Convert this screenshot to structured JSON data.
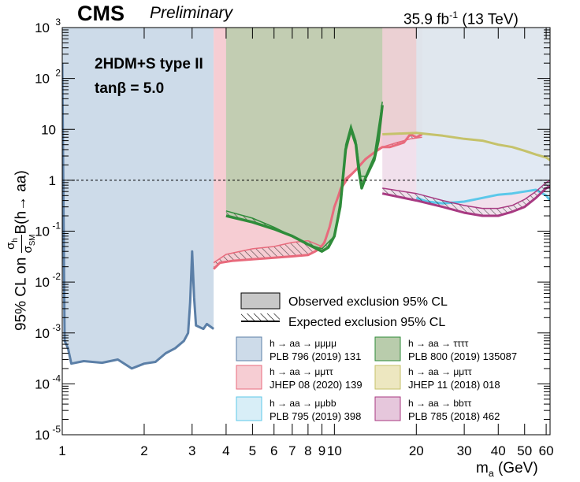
{
  "header": {
    "experiment": "CMS",
    "status": "Preliminary",
    "lumi_value": "35.9 fb",
    "lumi_exp": "-1",
    "energy": "(13 TeV)"
  },
  "annotation": {
    "model": "2HDM+S type II",
    "tanbeta": "tanβ = 5.0"
  },
  "axes": {
    "ylabel_prefix": "95% CL on ",
    "ylabel_ratio_num": "σ",
    "ylabel_ratio_num_sub": "h",
    "ylabel_ratio_den": "σ",
    "ylabel_ratio_den_sub": "SM",
    "ylabel_suffix": "B(h→ aa)",
    "xlabel_main": "m",
    "xlabel_sub": "a",
    "xlabel_unit": " (GeV)"
  },
  "chart_data": {
    "type": "area",
    "x_scale": "log",
    "y_scale": "log",
    "xlim": [
      1,
      62
    ],
    "ylim": [
      1e-05,
      1000
    ],
    "x_ticks": [
      {
        "v": 1,
        "label": "1"
      },
      {
        "v": 2,
        "label": "2"
      },
      {
        "v": 3,
        "label": "3"
      },
      {
        "v": 4,
        "label": "4"
      },
      {
        "v": 5,
        "label": "5"
      },
      {
        "v": 6,
        "label": "6"
      },
      {
        "v": 7,
        "label": "7"
      },
      {
        "v": 8,
        "label": "8"
      },
      {
        "v": 9,
        "label": "9"
      },
      {
        "v": 10,
        "label": "10"
      },
      {
        "v": 20,
        "label": "20"
      },
      {
        "v": 30,
        "label": "30"
      },
      {
        "v": 40,
        "label": "40"
      },
      {
        "v": 50,
        "label": "50"
      },
      {
        "v": 60,
        "label": "60"
      }
    ],
    "y_ticks": [
      {
        "v": 1e-05,
        "base": "10",
        "exp": "-5"
      },
      {
        "v": 0.0001,
        "base": "10",
        "exp": "-4"
      },
      {
        "v": 0.001,
        "base": "10",
        "exp": "-3"
      },
      {
        "v": 0.01,
        "base": "10",
        "exp": "-2"
      },
      {
        "v": 0.1,
        "base": "10",
        "exp": "-1"
      },
      {
        "v": 1,
        "base": "1",
        "exp": ""
      },
      {
        "v": 10,
        "base": "10",
        "exp": ""
      },
      {
        "v": 100,
        "base": "10",
        "exp": "2"
      },
      {
        "v": 1000,
        "base": "10",
        "exp": "3"
      }
    ],
    "reference_line": {
      "y": 1,
      "style": "dashed"
    },
    "series": [
      {
        "name": "h → aa → μμμμ",
        "ref": "PLB 796 (2019) 131",
        "fill": "#cddbe9",
        "line": "#5b7fa7",
        "observed": [
          [
            1.0,
            200
          ],
          [
            1.02,
            0.0007
          ],
          [
            1.05,
            0.0005
          ],
          [
            1.08,
            0.00025
          ],
          [
            1.2,
            0.00028
          ],
          [
            1.4,
            0.00026
          ],
          [
            1.6,
            0.0003
          ],
          [
            1.8,
            0.0002
          ],
          [
            2.0,
            0.00025
          ],
          [
            2.2,
            0.00027
          ],
          [
            2.4,
            0.0004
          ],
          [
            2.6,
            0.0005
          ],
          [
            2.8,
            0.0007
          ],
          [
            2.9,
            0.001
          ],
          [
            2.95,
            0.004
          ],
          [
            3.0,
            0.04
          ],
          [
            3.05,
            0.005
          ],
          [
            3.1,
            0.0014
          ],
          [
            3.3,
            0.0012
          ],
          [
            3.4,
            0.0015
          ],
          [
            3.6,
            0.0012
          ]
        ]
      },
      {
        "name": "h → aa → μμττ",
        "ref": "JHEP 08 (2020) 139",
        "fill": "#f6cdd3",
        "line": "#e86a7c",
        "observed": [
          [
            3.6,
            0.018
          ],
          [
            3.8,
            0.024
          ],
          [
            4.2,
            0.026
          ],
          [
            5,
            0.028
          ],
          [
            6,
            0.03
          ],
          [
            7,
            0.032
          ],
          [
            8,
            0.034
          ],
          [
            8.5,
            0.04
          ],
          [
            8.8,
            0.045
          ],
          [
            9.2,
            0.06
          ],
          [
            9.6,
            0.12
          ],
          [
            10,
            0.3
          ],
          [
            10.6,
            0.7
          ],
          [
            11.2,
            1.1
          ],
          [
            12,
            1.6
          ],
          [
            13,
            2.6
          ],
          [
            14,
            3.5
          ],
          [
            15,
            4.5
          ],
          [
            16,
            4.5
          ],
          [
            18,
            5.5
          ],
          [
            19,
            8
          ],
          [
            20,
            7
          ],
          [
            21,
            8
          ]
        ],
        "expected": [
          [
            3.6,
            0.024
          ],
          [
            4,
            0.035
          ],
          [
            5,
            0.045
          ],
          [
            6,
            0.05
          ],
          [
            7,
            0.06
          ],
          [
            8,
            0.065
          ],
          [
            9,
            0.05
          ],
          [
            9.5,
            0.1
          ],
          [
            10,
            0.3
          ],
          [
            10.5,
            0.7
          ],
          [
            11,
            1.1
          ],
          [
            12,
            1.6
          ],
          [
            13,
            2.5
          ],
          [
            14,
            3.5
          ],
          [
            15,
            4.5
          ],
          [
            17,
            5.5
          ],
          [
            19,
            6.5
          ],
          [
            21,
            7
          ]
        ]
      },
      {
        "name": "h → aa → μμbb",
        "ref": "PLB 795 (2019) 398",
        "fill": "#d8eef7",
        "line": "#5bc8ea",
        "observed": [
          [
            20,
            0.45
          ],
          [
            22,
            0.38
          ],
          [
            25,
            0.35
          ],
          [
            30,
            0.38
          ],
          [
            35,
            0.45
          ],
          [
            40,
            0.52
          ],
          [
            45,
            0.55
          ],
          [
            50,
            0.6
          ],
          [
            55,
            0.65
          ],
          [
            60,
            0.5
          ],
          [
            62,
            0.4
          ]
        ]
      },
      {
        "name": "h → aa → ττττ",
        "ref": "PLB 800 (2019) 135087",
        "fill": "#b9ccac",
        "line": "#2f8c3a",
        "observed": [
          [
            4,
            0.2
          ],
          [
            5,
            0.15
          ],
          [
            6,
            0.11
          ],
          [
            7,
            0.08
          ],
          [
            8,
            0.055
          ],
          [
            9,
            0.04
          ],
          [
            9.5,
            0.048
          ],
          [
            10,
            0.08
          ],
          [
            10.5,
            0.3
          ],
          [
            11,
            4
          ],
          [
            11.5,
            10
          ],
          [
            12,
            5
          ],
          [
            12.3,
            1.5
          ],
          [
            12.6,
            0.7
          ],
          [
            13,
            1.1
          ],
          [
            14,
            2.5
          ],
          [
            14.5,
            6
          ],
          [
            15,
            30
          ]
        ],
        "expected": [
          [
            4,
            0.25
          ],
          [
            5,
            0.18
          ],
          [
            6,
            0.12
          ],
          [
            7,
            0.08
          ],
          [
            8,
            0.055
          ],
          [
            9,
            0.045
          ],
          [
            10,
            0.08
          ],
          [
            10.5,
            0.4
          ],
          [
            11,
            5
          ],
          [
            11.5,
            12
          ],
          [
            12,
            6
          ],
          [
            12.5,
            1.2
          ],
          [
            13,
            1.2
          ],
          [
            14,
            3
          ],
          [
            15,
            35
          ]
        ]
      },
      {
        "name": "h → aa → μμττ",
        "ref": "JHEP 11 (2018) 018",
        "fill": "#ede7c0",
        "line": "#c5c26a",
        "observed": [
          [
            15,
            8
          ],
          [
            20,
            8.5
          ],
          [
            25,
            7.5
          ],
          [
            30,
            6.5
          ],
          [
            35,
            6
          ],
          [
            40,
            5
          ],
          [
            45,
            4.5
          ],
          [
            50,
            3.8
          ],
          [
            55,
            3.2
          ],
          [
            60,
            2.8
          ],
          [
            62,
            2.5
          ]
        ]
      },
      {
        "name": "h → aa → bbττ",
        "ref": "PLB 785 (2018) 462",
        "fill": "#e6c7dc",
        "line": "#a83a82",
        "observed": [
          [
            15,
            0.55
          ],
          [
            20,
            0.4
          ],
          [
            25,
            0.3
          ],
          [
            30,
            0.23
          ],
          [
            35,
            0.2
          ],
          [
            40,
            0.2
          ],
          [
            45,
            0.24
          ],
          [
            50,
            0.3
          ],
          [
            55,
            0.45
          ],
          [
            60,
            0.7
          ],
          [
            62,
            0.75
          ]
        ],
        "expected": [
          [
            15,
            0.7
          ],
          [
            20,
            0.55
          ],
          [
            25,
            0.4
          ],
          [
            30,
            0.32
          ],
          [
            35,
            0.28
          ],
          [
            40,
            0.28
          ],
          [
            45,
            0.32
          ],
          [
            50,
            0.42
          ],
          [
            55,
            0.6
          ],
          [
            60,
            0.9
          ],
          [
            62,
            1.0
          ]
        ]
      }
    ],
    "exclusion_bands": [
      {
        "series": "μμμμ",
        "x": [
          1.0,
          3.6
        ],
        "y_top": 1000,
        "fill": "#cddbe9",
        "opacity": 1.0
      },
      {
        "series": "μμττ",
        "x": [
          3.6,
          21
        ],
        "y_top": 1000,
        "fill": "#f5c6cd",
        "opacity": 1.0
      },
      {
        "series": "ττττ",
        "x": [
          4,
          15
        ],
        "y_top": 1000,
        "fill": "#b7c7a3",
        "opacity": 0.9
      },
      {
        "series": "μμττ 2018",
        "x": [
          15,
          62
        ],
        "y_top": 1000,
        "fill": "#e7dfa9",
        "opacity": 0.55
      },
      {
        "series": "bbττ",
        "x": [
          15,
          62
        ],
        "y_top": 1000,
        "fill": "#e6c7dc",
        "opacity": 0.55
      },
      {
        "series": "μμbb",
        "x": [
          20,
          62
        ],
        "y_top": 1000,
        "fill": "#cfe3ee",
        "opacity": 0.65
      }
    ],
    "legend": {
      "placement": "bottom-right",
      "observed_label": "Observed exclusion 95% CL",
      "expected_label": "Expected exclusion 95% CL"
    }
  }
}
